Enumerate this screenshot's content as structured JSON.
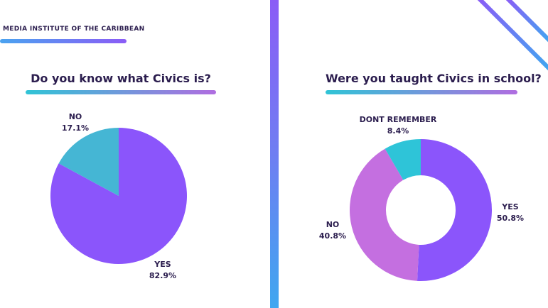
{
  "brand": {
    "name": "MEDIA INSTITUTE OF THE CARIBBEAN"
  },
  "colors": {
    "purple": "#8b55fb",
    "teal": "#45b6d4",
    "pink": "#c46fe0",
    "cyan": "#2ec4d8",
    "text": "#2b1d4e"
  },
  "chart_data": [
    {
      "type": "pie",
      "title": "Do you know what Civics is?",
      "categories": [
        "YES",
        "NO"
      ],
      "values": [
        82.9,
        17.1
      ],
      "value_labels": [
        "82.9%",
        "17.1%"
      ]
    },
    {
      "type": "pie",
      "variant": "donut",
      "title": "Were you taught Civics in school?",
      "categories": [
        "YES",
        "NO",
        "DONT REMEMBER"
      ],
      "values": [
        50.8,
        40.8,
        8.4
      ],
      "value_labels": [
        "50.8%",
        "40.8%",
        "8.4%"
      ]
    }
  ]
}
